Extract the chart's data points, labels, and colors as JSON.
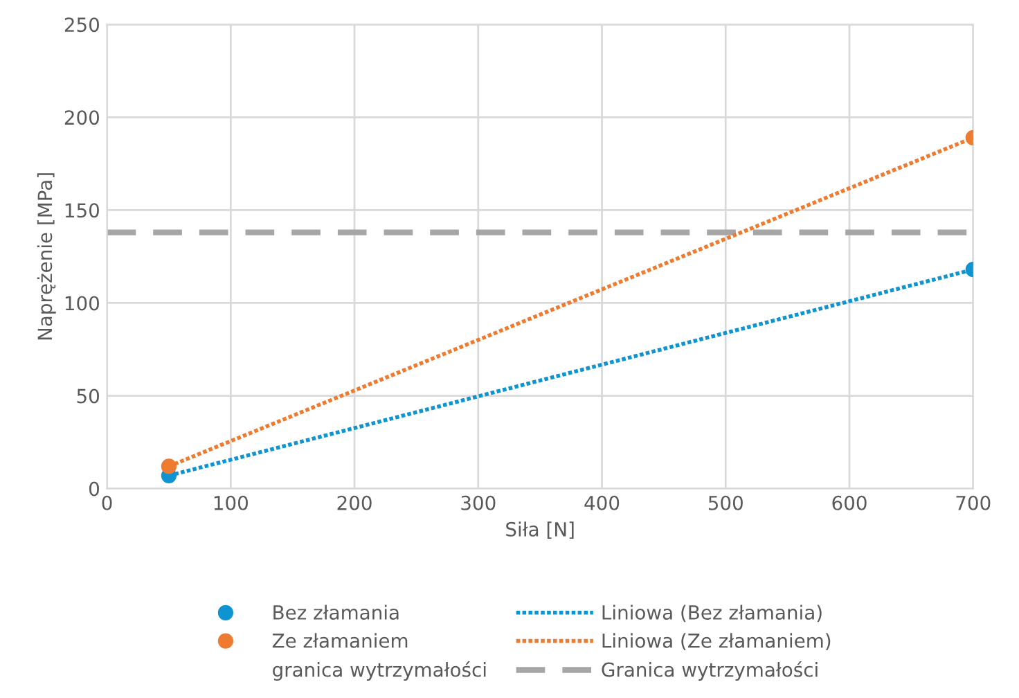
{
  "chart_data": {
    "type": "scatter",
    "xlabel": "Siła [N]",
    "ylabel": "Naprężenie [MPa]",
    "xlim": [
      0,
      700
    ],
    "xticks": [
      0,
      100,
      200,
      300,
      400,
      500,
      600,
      700
    ],
    "ylim": [
      0,
      250
    ],
    "yticks": [
      0,
      50,
      100,
      150,
      200,
      250
    ],
    "grid": true,
    "legend": "bottom",
    "x": [
      50,
      700
    ],
    "series": [
      {
        "name": "Bez złamania",
        "marker": "circle",
        "color": "#0f94d2",
        "values": [
          7,
          118
        ]
      },
      {
        "name": "Ze złamaniem",
        "marker": "circle",
        "color": "#ee7b30",
        "values": [
          12,
          189
        ]
      },
      {
        "name": "Liniowa (Bez złamania)",
        "type": "line",
        "marker": "none",
        "line_style": "dotted",
        "color": "#0f94d2",
        "values": [
          7,
          118
        ]
      },
      {
        "name": "Liniowa (Ze złamaniem)",
        "type": "line",
        "marker": "none",
        "line_style": "dotted",
        "color": "#ee7b30",
        "values": [
          12,
          189
        ]
      }
    ],
    "annotations": [
      "granica wytrzymałości"
    ],
    "ref_lines": [
      {
        "axis": "y",
        "value": 138,
        "label": "Granica wytrzymałości",
        "color": "#a6a6a6",
        "line_style": "dashed"
      }
    ]
  }
}
